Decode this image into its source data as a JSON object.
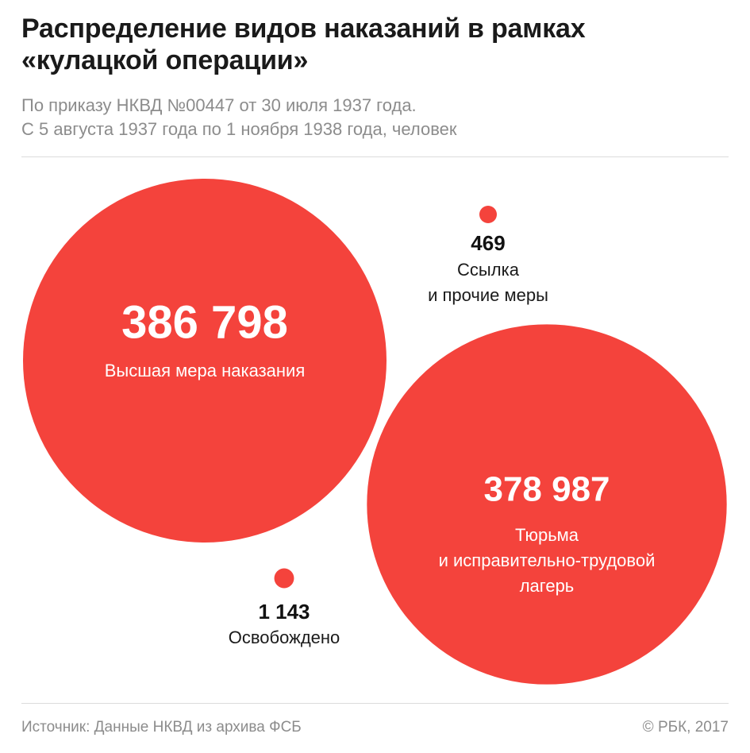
{
  "header": {
    "title_lines": [
      "Распределение видов наказаний в рамках",
      "«кулацкой операции»"
    ],
    "subtitle_lines": [
      "По приказу НКВД №00447 от 30 июля 1937 года.",
      "С 5 августа 1937 года по 1 ноября 1938 года, человек"
    ]
  },
  "footer": {
    "source": "Источник: Данные НКВД из архива ФСБ",
    "copyright": "© РБК, 2017"
  },
  "colors": {
    "bubble": "#f4433c",
    "inside_label": "#ffffff",
    "outside_value": "#111111",
    "outside_label": "#1a1a1a"
  },
  "chart_data": {
    "type": "bubble",
    "unit": "человек",
    "items": [
      {
        "value": 386798,
        "value_label": "386 798",
        "label_lines": [
          "Высшая мера наказания"
        ]
      },
      {
        "value": 378987,
        "value_label": "378 987",
        "label_lines": [
          "Тюрьма",
          "и исправительно-трудовой",
          "лагерь"
        ]
      },
      {
        "value": 469,
        "value_label": "469",
        "label_lines": [
          "Ссылка",
          "и прочие меры"
        ]
      },
      {
        "value": 1143,
        "value_label": "1 143",
        "label_lines": [
          "Освобождено"
        ]
      }
    ]
  }
}
